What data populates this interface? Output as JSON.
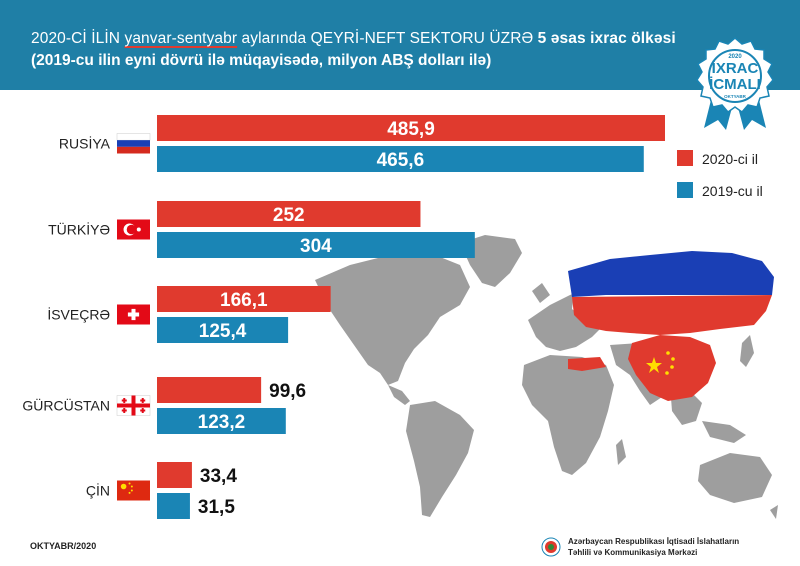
{
  "header": {
    "title_part1": "2020-Cİ İLİN ",
    "title_highlight": "yanvar-sentyabr",
    "title_part2": " aylarında  QEYRİ-NEFT SEKTORU ÜZRƏ ",
    "title_part3": "5 əsas ixrac ölkəsi",
    "subtitle": "(2019-cu ilin eyni dövrü ilə müqayisədə, milyon ABŞ dolları ilə)"
  },
  "badge": {
    "year": "2020",
    "line1": "İXRAC",
    "line2": "İCMALI",
    "month": "OKTYABR"
  },
  "colors": {
    "header_bg": "#1f7fa6",
    "series_2020": "#e03a2e",
    "series_2019": "#1a85b5",
    "map_land": "#9e9e9e"
  },
  "chart_data": {
    "type": "bar",
    "orientation": "horizontal",
    "categories": [
      "RUSİYA",
      "TÜRKİYƏ",
      "İSVEÇRƏ",
      "GÜRCÜSTAN",
      "ÇİN"
    ],
    "series": [
      {
        "name": "2020-ci il",
        "color": "#e03a2e",
        "values": [
          485.9,
          252,
          166.1,
          99.6,
          33.4
        ],
        "labels": [
          "485,9",
          "252",
          "166,1",
          "99,6",
          "33,4"
        ]
      },
      {
        "name": "2019-cu il",
        "color": "#1a85b5",
        "values": [
          465.6,
          304,
          125.4,
          123.2,
          31.5
        ],
        "labels": [
          "465,6",
          "304",
          "125,4",
          "123,2",
          "31,5"
        ]
      }
    ],
    "flags": [
      "flag-russia-icon",
      "flag-turkey-icon",
      "flag-switzerland-icon",
      "flag-georgia-icon",
      "flag-china-icon"
    ],
    "legend_position": "right",
    "grid": false
  },
  "footer": {
    "date": "OKTYABR/2020",
    "org_line1": "Azərbaycan Respublikası İqtisadi İslahatların",
    "org_line2": "Təhlili və Kommunikasiya Mərkəzi"
  }
}
